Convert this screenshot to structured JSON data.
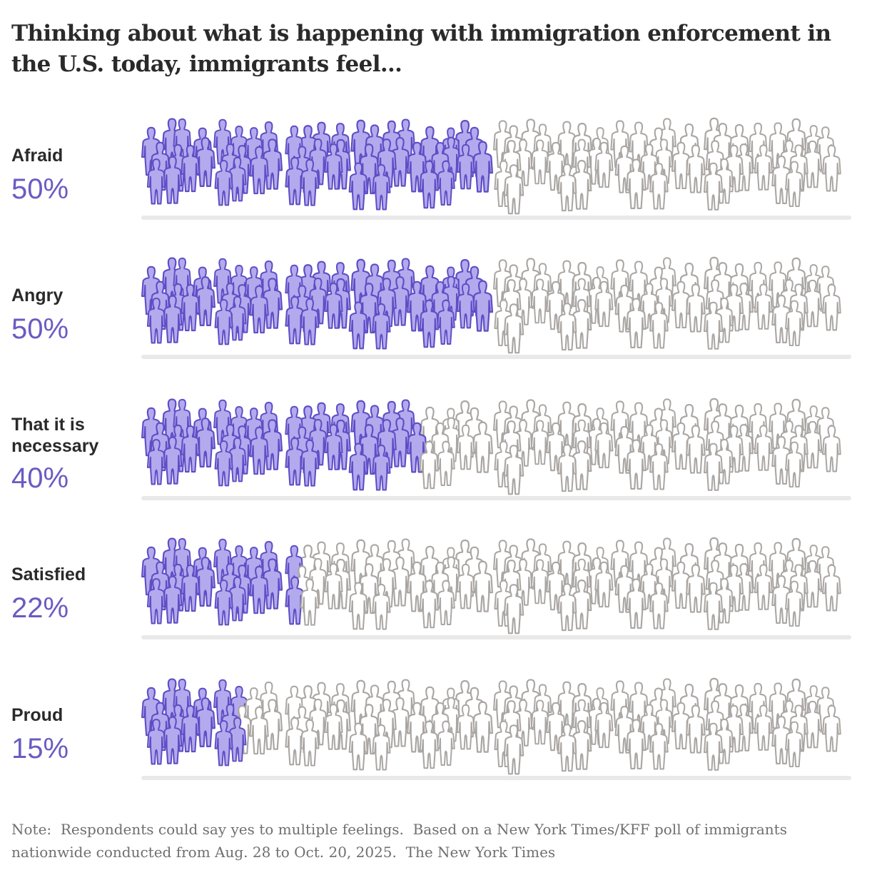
{
  "title": "Thinking about what is happening with immigration enforcement in the U.S. today, immigrants feel…",
  "colors": {
    "accent_fill": "#b3aaee",
    "accent_stroke": "#5e4ec5",
    "percent_text": "#6a5bc2",
    "empty_fill": "#ffffff",
    "empty_stroke": "#aaa6a3",
    "shadow": "#e9e9e9"
  },
  "icon": "person-icon",
  "chart_data": {
    "type": "isotype",
    "unit": "percent of immigrants",
    "max": 100,
    "categories": [
      "Afraid",
      "Angry",
      "That it is necessary",
      "Satisfied",
      "Proud"
    ],
    "values": [
      50,
      50,
      40,
      22,
      15
    ],
    "rows": [
      {
        "label": "Afraid",
        "percent_label": "50%",
        "value": 50
      },
      {
        "label": "Angry",
        "percent_label": "50%",
        "value": 50
      },
      {
        "label": "That it is necessary",
        "percent_label": "40%",
        "value": 40
      },
      {
        "label": "Satisfied",
        "percent_label": "22%",
        "value": 22
      },
      {
        "label": "Proud",
        "percent_label": "15%",
        "value": 15
      }
    ]
  },
  "note": {
    "text": "Note:  Respondents could say yes to multiple feelings.  Based on a New York Times/KFF poll of immigrants nationwide conducted from Aug. 28 to Oct. 20, 2025.  The New York Times"
  }
}
